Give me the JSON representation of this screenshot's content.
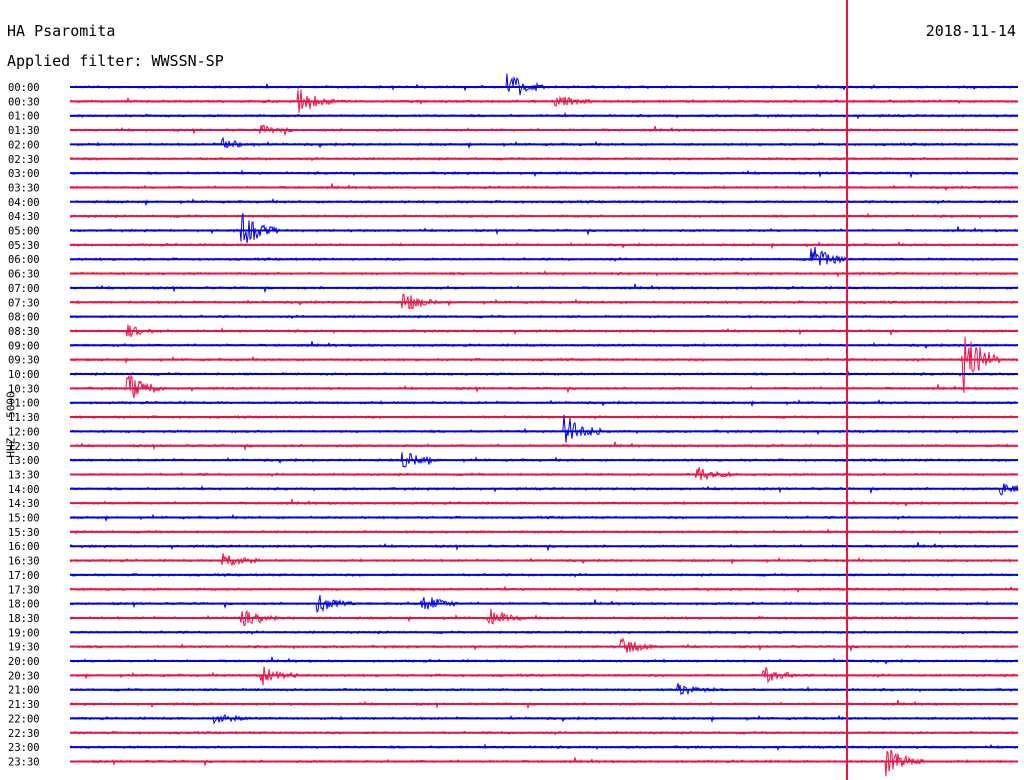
{
  "header": {
    "station": "HA Psaromita",
    "date": "2018-11-14",
    "filter": "Applied filter: WWSSN-SP",
    "channel_label": "HHZ - 5000"
  },
  "colors": {
    "blue": "#0000ee",
    "red": "#ee1144"
  },
  "chart_data": {
    "type": "line",
    "title": "HA Psaromita",
    "subtitle": "Applied filter: WWSSN-SP",
    "ylabel": "HHZ - 5000",
    "grid": false,
    "rows": [
      "00:00",
      "00:30",
      "01:00",
      "01:30",
      "02:00",
      "02:30",
      "03:00",
      "03:30",
      "04:00",
      "04:30",
      "05:00",
      "05:30",
      "06:00",
      "06:30",
      "07:00",
      "07:30",
      "08:00",
      "08:30",
      "09:00",
      "09:30",
      "10:00",
      "10:30",
      "11:00",
      "11:30",
      "12:00",
      "12:30",
      "13:00",
      "13:30",
      "14:00",
      "14:30",
      "15:00",
      "15:30",
      "16:00",
      "16:30",
      "17:00",
      "17:30",
      "18:00",
      "18:30",
      "19:00",
      "19:30",
      "20:00",
      "20:30",
      "21:00",
      "21:30",
      "22:00",
      "22:30",
      "23:00",
      "23:30"
    ],
    "row_colors": [
      "blue",
      "red"
    ],
    "events": [
      {
        "row": 1,
        "t": 0.24,
        "amp": 1.8
      },
      {
        "row": 0,
        "t": 0.46,
        "amp": 2.2
      },
      {
        "row": 1,
        "t": 0.51,
        "amp": 1.0
      },
      {
        "row": 4,
        "t": 0.16,
        "amp": 0.8
      },
      {
        "row": 3,
        "t": 0.2,
        "amp": 0.6
      },
      {
        "row": 10,
        "t": 0.18,
        "amp": 2.5
      },
      {
        "row": 15,
        "t": 0.35,
        "amp": 1.4
      },
      {
        "row": 17,
        "t": 0.06,
        "amp": 0.8
      },
      {
        "row": 12,
        "t": 0.78,
        "amp": 2.0
      },
      {
        "row": 19,
        "t": 0.94,
        "amp": 5.0
      },
      {
        "row": 21,
        "t": 0.06,
        "amp": 2.0
      },
      {
        "row": 24,
        "t": 0.52,
        "amp": 2.5
      },
      {
        "row": 26,
        "t": 0.35,
        "amp": 1.3
      },
      {
        "row": 27,
        "t": 0.66,
        "amp": 1.2
      },
      {
        "row": 28,
        "t": 0.98,
        "amp": 1.0
      },
      {
        "row": 33,
        "t": 0.16,
        "amp": 1.2
      },
      {
        "row": 36,
        "t": 0.37,
        "amp": 1.4
      },
      {
        "row": 37,
        "t": 0.44,
        "amp": 1.3
      },
      {
        "row": 37,
        "t": 0.18,
        "amp": 1.1
      },
      {
        "row": 39,
        "t": 0.58,
        "amp": 1.2
      },
      {
        "row": 41,
        "t": 0.2,
        "amp": 1.5
      },
      {
        "row": 41,
        "t": 0.73,
        "amp": 1.2
      },
      {
        "row": 42,
        "t": 0.64,
        "amp": 0.9
      },
      {
        "row": 44,
        "t": 0.15,
        "amp": 0.8
      },
      {
        "row": 47,
        "t": 0.86,
        "amp": 2.0
      },
      {
        "row": 36,
        "t": 0.26,
        "amp": 1.3
      }
    ]
  }
}
